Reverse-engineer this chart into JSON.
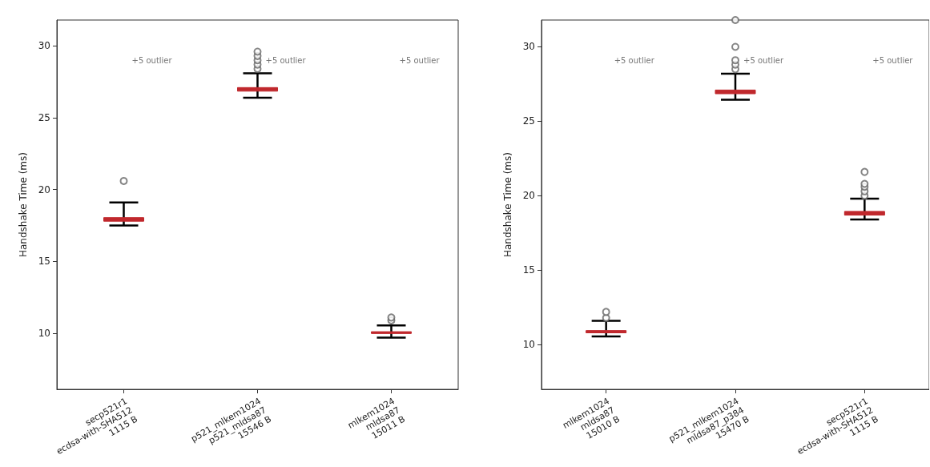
{
  "chart_data": [
    {
      "type": "box",
      "ylabel": "Handshake Time (ms)",
      "categories": [
        "secp521r1\necdsa-with-SHA512\n1115 B",
        "p521_mlkem1024\np521_mldsa87\n15546 B",
        "mlkem1024\nmldsa87\n15011 B"
      ],
      "boxes": [
        {
          "low": 17.5,
          "q1": 17.8,
          "median": 17.9,
          "q3": 18.05,
          "high": 19.1,
          "outliers": [
            20.6
          ]
        },
        {
          "low": 26.4,
          "q1": 26.85,
          "median": 27.0,
          "q3": 27.1,
          "high": 28.1,
          "outliers": [
            28.4,
            28.7,
            29.0,
            29.3,
            29.6
          ]
        },
        {
          "low": 9.7,
          "q1": 10.0,
          "median": 10.05,
          "q3": 10.1,
          "high": 10.55,
          "outliers": [
            10.9,
            11.1
          ]
        }
      ],
      "color": "#c0282d",
      "ylim": [
        6.1,
        31.8
      ],
      "yticks": [
        10,
        15,
        20,
        25,
        30
      ],
      "grid": false,
      "annotations": [
        "+5 outlier",
        "+5 outlier",
        "+5 outlier"
      ]
    },
    {
      "type": "box",
      "ylabel": "Handshake Time (ms)",
      "categories": [
        "mlkem1024\nmldsa87\n15010 B",
        "p521_mlkem1024\nmldsa87_p384\n15470 B",
        "secp521r1\necdsa-with-SHA512\n1115 B"
      ],
      "boxes": [
        {
          "low": 10.55,
          "q1": 10.8,
          "median": 10.85,
          "q3": 10.95,
          "high": 11.6,
          "outliers": [
            11.8,
            12.2
          ]
        },
        {
          "low": 26.45,
          "q1": 26.85,
          "median": 27.0,
          "q3": 27.1,
          "high": 28.2,
          "outliers": [
            28.5,
            28.8,
            29.1,
            30.0,
            31.8
          ]
        },
        {
          "low": 18.4,
          "q1": 18.7,
          "median": 18.8,
          "q3": 18.95,
          "high": 19.8,
          "outliers": [
            20.0,
            20.3,
            20.6,
            20.8,
            21.6
          ]
        }
      ],
      "color": "#c0282d",
      "ylim": [
        7.0,
        31.8
      ],
      "yticks": [
        10,
        15,
        20,
        25,
        30
      ],
      "grid": false,
      "annotations": [
        "+5 outlier",
        "+5 outlier",
        "+5 outlier"
      ]
    }
  ]
}
